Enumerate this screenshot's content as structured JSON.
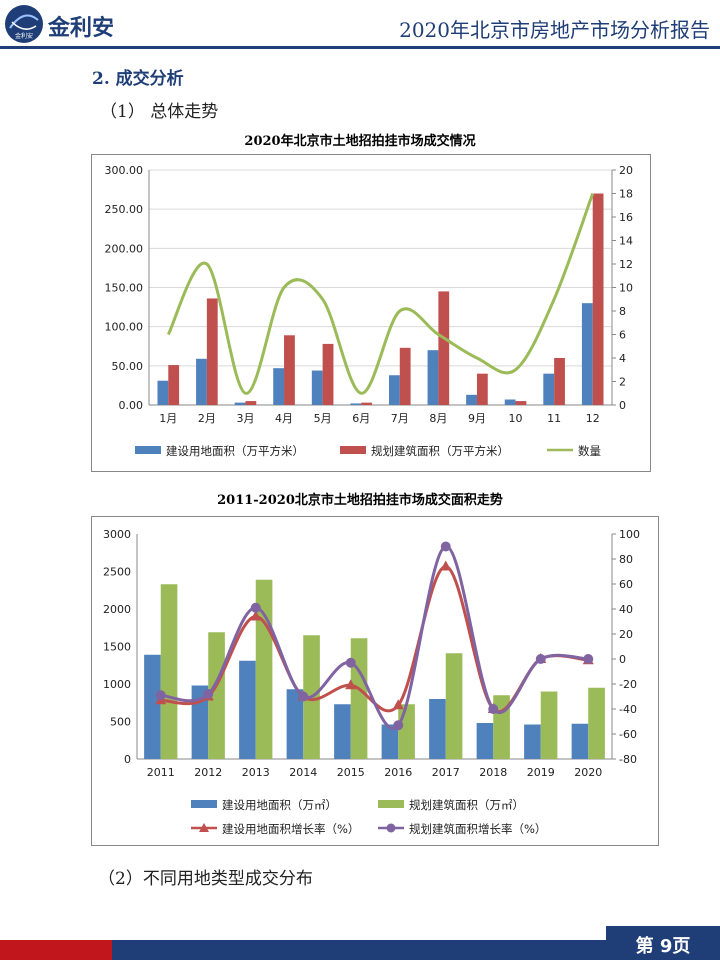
{
  "header": {
    "brand": "金利安",
    "logo_text": "金利安",
    "report_title": "2020年北京市房地产市场分析报告"
  },
  "section_title": "2. 成交分析",
  "subsection1": "（1） 总体走势",
  "subsection2": "（2）不同用地类型成交分布",
  "footer": {
    "page": "第 9页"
  },
  "chart_data": [
    {
      "type": "bar",
      "title": "2020年北京市土地招拍挂市场成交情况",
      "categories": [
        "1月",
        "2月",
        "3月",
        "4月",
        "5月",
        "6月",
        "7月",
        "8月",
        "9月",
        "10",
        "11",
        "12"
      ],
      "ylim": [
        0,
        300
      ],
      "yticks": [
        "0.00",
        "50.00",
        "100.00",
        "150.00",
        "200.00",
        "250.00",
        "300.00"
      ],
      "y2lim": [
        0,
        20
      ],
      "y2ticks": [
        "0",
        "2",
        "4",
        "6",
        "8",
        "10",
        "12",
        "14",
        "16",
        "18",
        "20"
      ],
      "series": [
        {
          "name": "建设用地面积（万平方米）",
          "kind": "bar",
          "axis": "left",
          "color": "#4f81bd",
          "values": [
            31,
            59,
            3,
            47,
            44,
            2,
            38,
            70,
            13,
            7,
            40,
            130
          ]
        },
        {
          "name": "规划建筑面积（万平方米）",
          "kind": "bar",
          "axis": "left",
          "color": "#c0504d",
          "values": [
            51,
            136,
            5,
            89,
            78,
            3,
            73,
            145,
            40,
            5,
            60,
            270
          ]
        },
        {
          "name": "数量",
          "kind": "line",
          "axis": "right",
          "color": "#9bbb59",
          "values": [
            6,
            12,
            1,
            10,
            9,
            1,
            8,
            6,
            4,
            3,
            9,
            18
          ]
        }
      ],
      "legend_position": "bottom"
    },
    {
      "type": "bar",
      "title": "2011-2020北京市土地招拍挂市场成交面积走势",
      "categories": [
        "2011",
        "2012",
        "2013",
        "2014",
        "2015",
        "2016",
        "2017",
        "2018",
        "2019",
        "2020"
      ],
      "ylim": [
        0,
        3000
      ],
      "yticks": [
        "0",
        "500",
        "1000",
        "1500",
        "2000",
        "2500",
        "3000"
      ],
      "y2lim": [
        -80,
        100
      ],
      "y2ticks": [
        "-80",
        "-60",
        "-40",
        "-20",
        "0",
        "20",
        "40",
        "60",
        "80",
        "100"
      ],
      "series": [
        {
          "name": "建设用地面积（万㎡）",
          "kind": "bar",
          "axis": "left",
          "color": "#4f81bd",
          "values": [
            1390,
            980,
            1310,
            930,
            730,
            460,
            800,
            480,
            460,
            470
          ]
        },
        {
          "name": "规划建筑面积（万㎡）",
          "kind": "bar",
          "axis": "left",
          "color": "#9bbb59",
          "values": [
            2330,
            1690,
            2390,
            1650,
            1610,
            730,
            1410,
            850,
            900,
            950
          ]
        },
        {
          "name": "建设用地面积增长率（%）",
          "kind": "line",
          "axis": "right",
          "color": "#c0504d",
          "marker": "triangle",
          "values": [
            -33,
            -30,
            34,
            -30,
            -21,
            -37,
            74,
            -40,
            0,
            -1
          ]
        },
        {
          "name": "规划建筑面积增长率（%）",
          "kind": "line",
          "axis": "right",
          "color": "#8064a2",
          "marker": "circle",
          "values": [
            -29,
            -28,
            41,
            -30,
            -3,
            -53,
            90,
            -40,
            0,
            0
          ]
        }
      ],
      "legend_position": "bottom"
    }
  ]
}
